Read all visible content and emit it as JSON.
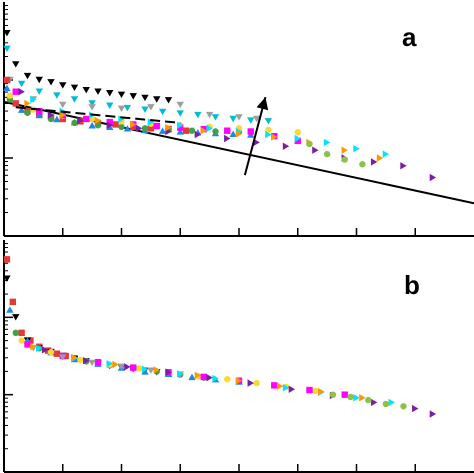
{
  "chart_data": [
    {
      "type": "scatter",
      "panel_label": "a",
      "x_range": [
        0,
        8
      ],
      "y_range": [
        0,
        3
      ],
      "grid": false,
      "legend": "none",
      "reference_line": {
        "x": [
          0,
          8
        ],
        "y": [
          1.72,
          0.42
        ]
      },
      "dashed_line": {
        "x": [
          0.2,
          3.0
        ],
        "y": [
          1.65,
          1.45
        ]
      },
      "arrow": {
        "from": [
          4.1,
          0.78
        ],
        "to": [
          4.45,
          1.78
        ]
      },
      "series": [
        {
          "color": "#000000",
          "marker": "triangle-down",
          "x": [
            0.05,
            0.2,
            0.4,
            0.6,
            0.8,
            1.0,
            1.2,
            1.4,
            1.6,
            1.8,
            2.0,
            2.2,
            2.4,
            2.6,
            2.8
          ],
          "y": [
            2.6,
            2.2,
            2.05,
            2.0,
            1.97,
            1.93,
            1.9,
            1.87,
            1.85,
            1.83,
            1.81,
            1.79,
            1.77,
            1.75,
            1.74
          ]
        },
        {
          "color": "#00bcd4",
          "marker": "triangle-down",
          "x": [
            0.05,
            0.3,
            0.6,
            0.9,
            1.2,
            1.5,
            1.8,
            2.1,
            2.4,
            2.7,
            3.0,
            3.3,
            3.6,
            3.9,
            4.2,
            4.5
          ],
          "y": [
            2.4,
            1.95,
            1.85,
            1.8,
            1.75,
            1.7,
            1.67,
            1.64,
            1.62,
            1.59,
            1.57,
            1.55,
            1.52,
            1.5,
            1.48,
            1.47
          ]
        },
        {
          "color": "#9e9e9e",
          "marker": "triangle-down",
          "x": [
            0.1,
            0.5,
            1.0,
            1.5,
            2.0,
            2.5,
            3.0,
            3.5,
            4.0,
            4.3
          ],
          "y": [
            2.0,
            1.75,
            1.68,
            1.65,
            1.63,
            1.65,
            1.68,
            1.55,
            1.52,
            1.5
          ]
        },
        {
          "color": "#e53935",
          "marker": "square",
          "x": [
            0.05,
            0.2,
            0.4,
            0.6,
            0.8,
            1.0,
            1.3,
            1.6,
            1.9,
            2.2,
            2.5,
            2.8,
            3.1
          ],
          "y": [
            2.0,
            1.7,
            1.6,
            1.56,
            1.52,
            1.5,
            1.47,
            1.45,
            1.43,
            1.4,
            1.38,
            1.37,
            1.35
          ]
        },
        {
          "color": "#1e88e5",
          "marker": "triangle-up",
          "x": [
            0.05,
            0.3,
            0.6,
            0.9,
            1.2,
            1.5,
            1.8,
            2.1,
            2.4,
            2.7,
            3.0,
            3.3,
            3.6,
            3.9,
            4.2
          ],
          "y": [
            1.9,
            1.62,
            1.55,
            1.5,
            1.46,
            1.42,
            1.4,
            1.38,
            1.36,
            1.35,
            1.34,
            1.33,
            1.32,
            1.31,
            1.3
          ]
        },
        {
          "color": "#43a047",
          "marker": "circle",
          "x": [
            0.1,
            0.4,
            0.8,
            1.2,
            1.6,
            2.0,
            2.4,
            2.8,
            3.2,
            3.6,
            4.0
          ],
          "y": [
            1.75,
            1.58,
            1.5,
            1.45,
            1.42,
            1.4,
            1.38,
            1.36,
            1.35,
            1.34,
            1.33
          ]
        },
        {
          "color": "#fdd835",
          "marker": "circle",
          "x": [
            0.1,
            0.5,
            1.0,
            1.5,
            2.0,
            2.5,
            3.0,
            3.5,
            4.0,
            4.5,
            5.0
          ],
          "y": [
            1.8,
            1.62,
            1.54,
            1.5,
            1.47,
            1.44,
            1.42,
            1.4,
            1.38,
            1.36,
            1.33
          ]
        },
        {
          "color": "#ff00ff",
          "marker": "square",
          "x": [
            0.2,
            0.6,
            1.0,
            1.4,
            1.8,
            2.2,
            2.6,
            3.0,
            3.4,
            3.8,
            4.2,
            4.6,
            5.0
          ],
          "y": [
            1.85,
            1.6,
            1.55,
            1.5,
            1.46,
            1.43,
            1.41,
            1.39,
            1.37,
            1.35,
            1.34,
            1.28,
            1.22
          ]
        },
        {
          "color": "#7b1fa2",
          "marker": "triangle-right",
          "x": [
            0.3,
            0.8,
            1.3,
            1.8,
            2.3,
            2.8,
            3.3,
            3.8,
            4.3,
            4.8,
            5.3,
            5.8,
            6.3,
            6.8,
            7.3
          ],
          "y": [
            1.85,
            1.55,
            1.48,
            1.42,
            1.38,
            1.34,
            1.3,
            1.25,
            1.2,
            1.15,
            1.1,
            1.0,
            0.95,
            0.9,
            0.75
          ]
        },
        {
          "color": "#00e5ff",
          "marker": "triangle-right",
          "x": [
            0.5,
            1.0,
            1.5,
            2.0,
            2.5,
            3.0,
            3.5,
            4.0,
            4.5,
            5.0,
            5.5,
            6.0,
            6.5
          ],
          "y": [
            1.75,
            1.6,
            1.55,
            1.5,
            1.46,
            1.42,
            1.38,
            1.34,
            1.3,
            1.25,
            1.2,
            1.12,
            1.05
          ]
        },
        {
          "color": "#ff9800",
          "marker": "triangle-right",
          "x": [
            0.4,
            1.0,
            1.6,
            2.2,
            2.8,
            3.4,
            4.0,
            4.6,
            5.2,
            5.8,
            6.4
          ],
          "y": [
            1.7,
            1.55,
            1.48,
            1.43,
            1.39,
            1.35,
            1.31,
            1.27,
            1.2,
            1.1,
            1.0
          ]
        },
        {
          "color": "#8bc34a",
          "marker": "circle",
          "x": [
            5.2,
            5.5,
            5.8,
            6.1
          ],
          "y": [
            1.18,
            1.05,
            0.98,
            0.92
          ]
        }
      ]
    },
    {
      "type": "scatter",
      "panel_label": "b",
      "x_range": [
        0,
        8
      ],
      "y_range": [
        0,
        3
      ],
      "grid": false,
      "legend": "none",
      "series": [
        {
          "color": "#e53935",
          "marker": "square",
          "x": [
            0.05,
            0.15,
            0.3,
            0.45,
            0.6,
            0.75,
            0.9,
            1.05,
            1.2
          ],
          "y": [
            2.75,
            2.2,
            1.8,
            1.7,
            1.62,
            1.57,
            1.53,
            1.5,
            1.47
          ]
        },
        {
          "color": "#000000",
          "marker": "triangle-down",
          "x": [
            0.05,
            0.2,
            0.4,
            0.6,
            0.8,
            1.0,
            1.2,
            1.4,
            1.6,
            1.8,
            2.0,
            2.2,
            2.4,
            2.6
          ],
          "y": [
            2.5,
            2.0,
            1.7,
            1.6,
            1.55,
            1.5,
            1.46,
            1.43,
            1.4,
            1.37,
            1.35,
            1.33,
            1.31,
            1.29
          ]
        },
        {
          "color": "#1e88e5",
          "marker": "triangle-up",
          "x": [
            0.1,
            0.4,
            0.8,
            1.2,
            1.6,
            2.0,
            2.4,
            2.8,
            3.2,
            3.6,
            4.0
          ],
          "y": [
            2.1,
            1.7,
            1.55,
            1.46,
            1.4,
            1.35,
            1.3,
            1.27,
            1.23,
            1.2,
            1.17
          ]
        },
        {
          "color": "#43a047",
          "marker": "circle",
          "x": [
            0.2,
            0.6,
            1.0,
            1.4,
            1.8,
            2.2,
            2.6,
            3.0,
            3.4
          ],
          "y": [
            1.8,
            1.6,
            1.5,
            1.43,
            1.38,
            1.34,
            1.3,
            1.26,
            1.22
          ]
        },
        {
          "color": "#fdd835",
          "marker": "circle",
          "x": [
            0.3,
            0.8,
            1.3,
            1.8,
            2.3,
            2.8,
            3.3,
            3.8,
            4.3,
            4.8,
            5.3
          ],
          "y": [
            1.7,
            1.55,
            1.45,
            1.39,
            1.34,
            1.29,
            1.24,
            1.2,
            1.15,
            1.1,
            1.05
          ]
        },
        {
          "color": "#ff00ff",
          "marker": "square",
          "x": [
            0.4,
            1.0,
            1.6,
            2.2,
            2.8,
            3.4,
            4.0,
            4.6,
            5.2,
            5.8
          ],
          "y": [
            1.65,
            1.5,
            1.42,
            1.35,
            1.29,
            1.23,
            1.18,
            1.12,
            1.06,
            1.0
          ]
        },
        {
          "color": "#9e9e9e",
          "marker": "triangle-down",
          "x": [
            0.5,
            1.0,
            1.5,
            2.0,
            2.5,
            3.0
          ],
          "y": [
            1.6,
            1.48,
            1.41,
            1.36,
            1.31,
            1.26
          ]
        },
        {
          "color": "#00e5ff",
          "marker": "triangle-right",
          "x": [
            0.6,
            1.2,
            1.8,
            2.4,
            3.0,
            3.6,
            4.2,
            4.8,
            5.4,
            6.0,
            6.6
          ],
          "y": [
            1.6,
            1.47,
            1.4,
            1.33,
            1.27,
            1.21,
            1.15,
            1.09,
            1.03,
            0.96,
            0.9
          ]
        },
        {
          "color": "#ff9800",
          "marker": "triangle-right",
          "x": [
            0.5,
            1.2,
            1.9,
            2.6,
            3.3,
            4.0,
            4.7,
            5.4,
            6.1
          ],
          "y": [
            1.62,
            1.48,
            1.39,
            1.32,
            1.25,
            1.18,
            1.11,
            1.04,
            0.96
          ]
        },
        {
          "color": "#7b1fa2",
          "marker": "triangle-right",
          "x": [
            0.7,
            1.4,
            2.1,
            2.8,
            3.5,
            4.2,
            4.9,
            5.6,
            6.3,
            7.0,
            7.3
          ],
          "y": [
            1.58,
            1.44,
            1.36,
            1.29,
            1.22,
            1.15,
            1.07,
            0.99,
            0.9,
            0.82,
            0.75
          ]
        },
        {
          "color": "#8bc34a",
          "marker": "circle",
          "x": [
            5.6,
            5.9,
            6.2,
            6.5,
            6.8
          ],
          "y": [
            1.0,
            0.97,
            0.93,
            0.88,
            0.85
          ]
        }
      ]
    }
  ]
}
